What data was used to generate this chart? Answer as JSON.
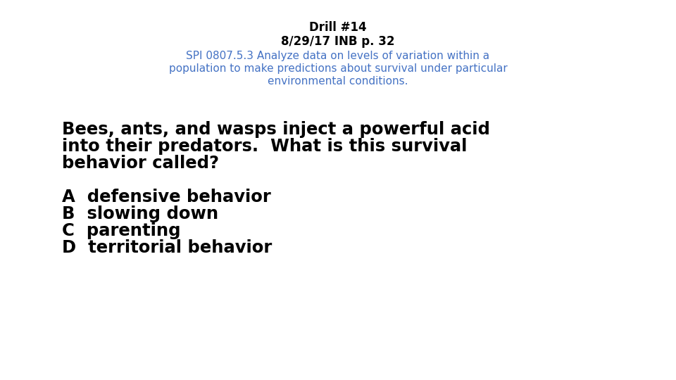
{
  "title_line1": "Drill #14",
  "title_line2": "8/29/17 INB p. 32",
  "subtitle_line1": "SPI 0807.5.3 Analyze data on levels of variation within a",
  "subtitle_line2": "population to make predictions about survival under particular",
  "subtitle_line3": "environmental conditions.",
  "question_line1": "Bees, ants, and wasps inject a powerful acid",
  "question_line2": "into their predators.  What is this survival",
  "question_line3": "behavior called?",
  "answer_a": "A  defensive behavior",
  "answer_b": "B  slowing down",
  "answer_c": "C  parenting",
  "answer_d": "D  territorial behavior",
  "title_color": "#000000",
  "subtitle_color": "#4472C4",
  "question_color": "#000000",
  "answer_color": "#000000",
  "background_color": "#ffffff",
  "title_fontsize": 12,
  "subtitle_fontsize": 11,
  "question_fontsize": 17.5,
  "answer_fontsize": 17.5
}
